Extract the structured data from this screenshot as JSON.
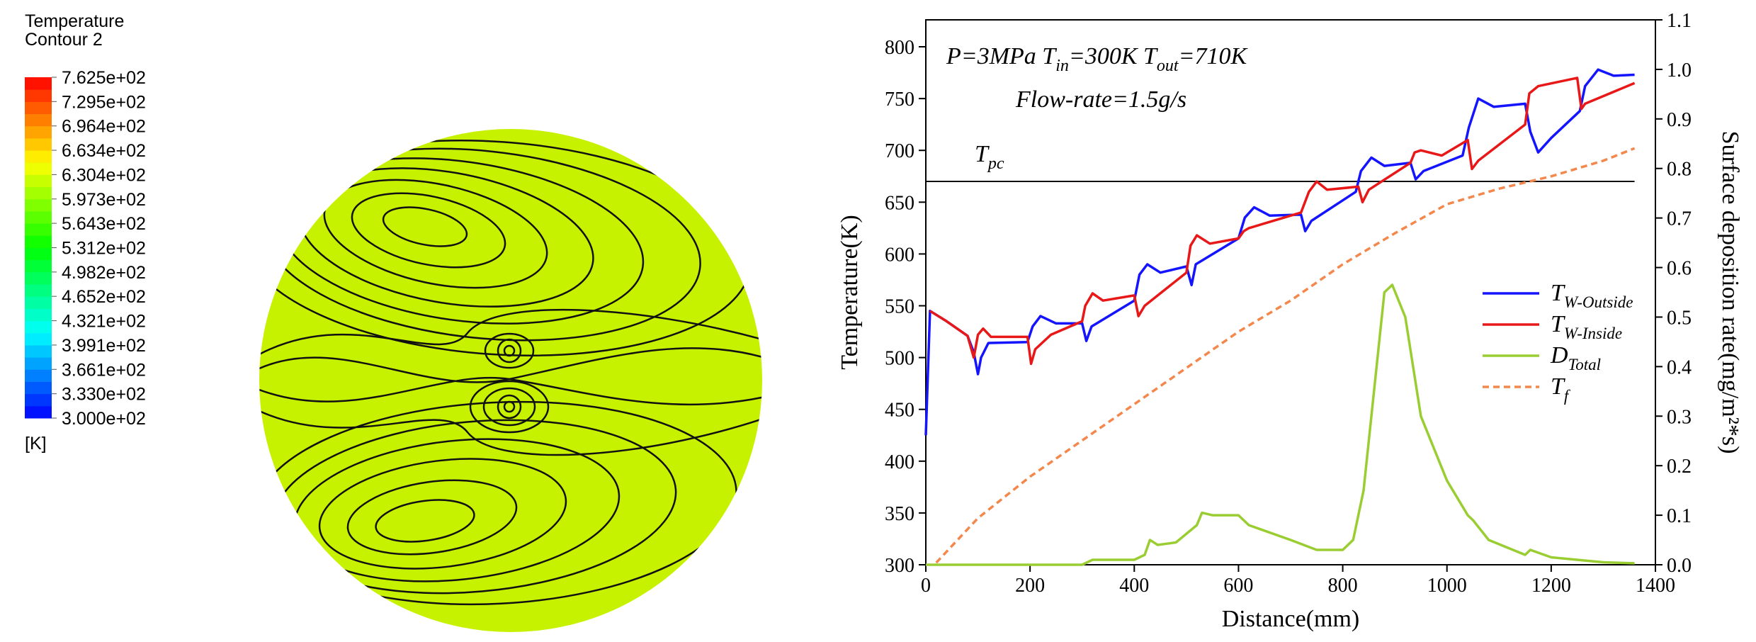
{
  "chart_data": [
    {
      "type": "colorbar",
      "title": "Temperature",
      "subtitle": "Contour 2",
      "unit": "[K]",
      "colormap": "rainbow",
      "lim": [
        300,
        762.5
      ],
      "ticks": [
        {
          "value": 762.5,
          "label": "7.625e+02"
        },
        {
          "value": 729.5,
          "label": "7.295e+02"
        },
        {
          "value": 696.4,
          "label": "6.964e+02"
        },
        {
          "value": 663.4,
          "label": "6.634e+02"
        },
        {
          "value": 630.4,
          "label": "6.304e+02"
        },
        {
          "value": 597.3,
          "label": "5.973e+02"
        },
        {
          "value": 564.3,
          "label": "5.643e+02"
        },
        {
          "value": 531.2,
          "label": "5.312e+02"
        },
        {
          "value": 498.2,
          "label": "4.982e+02"
        },
        {
          "value": 465.2,
          "label": "4.652e+02"
        },
        {
          "value": 432.1,
          "label": "4.321e+02"
        },
        {
          "value": 399.1,
          "label": "3.991e+02"
        },
        {
          "value": 366.1,
          "label": "3.661e+02"
        },
        {
          "value": 333.0,
          "label": "3.330e+02"
        },
        {
          "value": 300.0,
          "label": "3.000e+02"
        }
      ]
    },
    {
      "type": "line",
      "xlabel": "Distance(mm)",
      "ylabel": "Temperature(K)",
      "y2label": "Surface deposition rate(mg/m²*s)",
      "xlim": [
        0,
        1400
      ],
      "xticks": [
        0,
        200,
        400,
        600,
        800,
        1000,
        1200,
        1400
      ],
      "ylim": [
        300,
        826
      ],
      "yticks": [
        300,
        350,
        400,
        450,
        500,
        550,
        600,
        650,
        700,
        750,
        800
      ],
      "y2lim": [
        0,
        1.1
      ],
      "y2ticks": [
        {
          "value": 0,
          "label": "0.0"
        },
        0.1,
        0.2,
        0.3,
        0.4,
        0.5,
        0.6,
        0.7,
        0.8,
        0.9,
        {
          "value": 1,
          "label": "1.0"
        },
        1.1
      ],
      "legend": "right",
      "annotations": [
        {
          "parts": [
            {
              "text": "P=3MPa T"
            },
            {
              "text": "in",
              "sub": true
            },
            {
              "text": "=300K T"
            },
            {
              "text": "out",
              "sub": true
            },
            {
              "text": "=710K"
            }
          ]
        },
        {
          "parts": [
            {
              "text": "Flow-rate=1.5g/s"
            }
          ]
        }
      ],
      "reference_line": {
        "value": 670,
        "label": "T",
        "label_sub": "pc",
        "color": "#000000"
      },
      "series": [
        {
          "name": "T",
          "subscript": "W-Outside",
          "color": "#1414ff",
          "x": [
            0,
            8,
            40,
            80,
            92,
            100,
            106,
            120,
            195,
            205,
            220,
            250,
            300,
            308,
            318,
            400,
            410,
            425,
            450,
            500,
            510,
            518,
            600,
            612,
            630,
            660,
            720,
            728,
            740,
            825,
            835,
            855,
            880,
            930,
            940,
            955,
            1030,
            1042,
            1060,
            1090,
            1150,
            1160,
            1175,
            1200,
            1255,
            1265,
            1290,
            1320,
            1360
          ],
          "values": [
            425,
            545,
            535,
            521,
            505,
            484,
            500,
            514,
            515,
            530,
            540,
            533,
            533,
            516,
            530,
            555,
            580,
            590,
            582,
            588,
            570,
            590,
            615,
            635,
            645,
            637,
            638,
            622,
            632,
            660,
            680,
            693,
            685,
            688,
            672,
            680,
            695,
            722,
            750,
            742,
            745,
            718,
            698,
            712,
            738,
            762,
            778,
            772,
            773
          ]
        },
        {
          "name": "T",
          "subscript": "W-Inside",
          "color": "#e81818",
          "x": [
            8,
            40,
            80,
            92,
            100,
            110,
            125,
            195,
            202,
            210,
            240,
            300,
            306,
            320,
            340,
            400,
            408,
            420,
            500,
            508,
            520,
            545,
            600,
            610,
            620,
            720,
            735,
            750,
            770,
            830,
            838,
            850,
            930,
            938,
            950,
            990,
            1040,
            1048,
            1060,
            1150,
            1158,
            1175,
            1250,
            1258,
            1265,
            1360
          ],
          "values": [
            545,
            535,
            521,
            500,
            522,
            528,
            520,
            520,
            494,
            508,
            522,
            535,
            550,
            562,
            555,
            560,
            540,
            550,
            582,
            608,
            618,
            610,
            615,
            622,
            625,
            640,
            660,
            670,
            662,
            665,
            650,
            662,
            688,
            698,
            700,
            695,
            710,
            682,
            690,
            725,
            755,
            762,
            770,
            740,
            745,
            765
          ]
        },
        {
          "name": "D",
          "subscript": "Total",
          "color": "#9acd32",
          "axis": "y2",
          "x": [
            0,
            300,
            320,
            400,
            420,
            430,
            445,
            480,
            520,
            530,
            550,
            600,
            620,
            700,
            750,
            800,
            820,
            840,
            860,
            880,
            895,
            920,
            950,
            1000,
            1040,
            1050,
            1080,
            1150,
            1160,
            1200,
            1300,
            1360
          ],
          "values": [
            0,
            0,
            0.01,
            0.01,
            0.02,
            0.05,
            0.04,
            0.045,
            0.08,
            0.105,
            0.1,
            0.1,
            0.08,
            0.05,
            0.03,
            0.03,
            0.05,
            0.15,
            0.35,
            0.55,
            0.565,
            0.5,
            0.3,
            0.17,
            0.1,
            0.09,
            0.05,
            0.02,
            0.03,
            0.015,
            0.005,
            0.003
          ]
        },
        {
          "name": "T",
          "subscript": "f",
          "color": "#f4874b",
          "dash": true,
          "x": [
            20,
            100,
            200,
            300,
            400,
            500,
            600,
            700,
            800,
            900,
            1000,
            1100,
            1200,
            1300,
            1360
          ],
          "values": [
            302,
            345,
            385,
            420,
            455,
            490,
            525,
            555,
            590,
            620,
            648,
            663,
            675,
            690,
            702
          ]
        }
      ]
    }
  ]
}
